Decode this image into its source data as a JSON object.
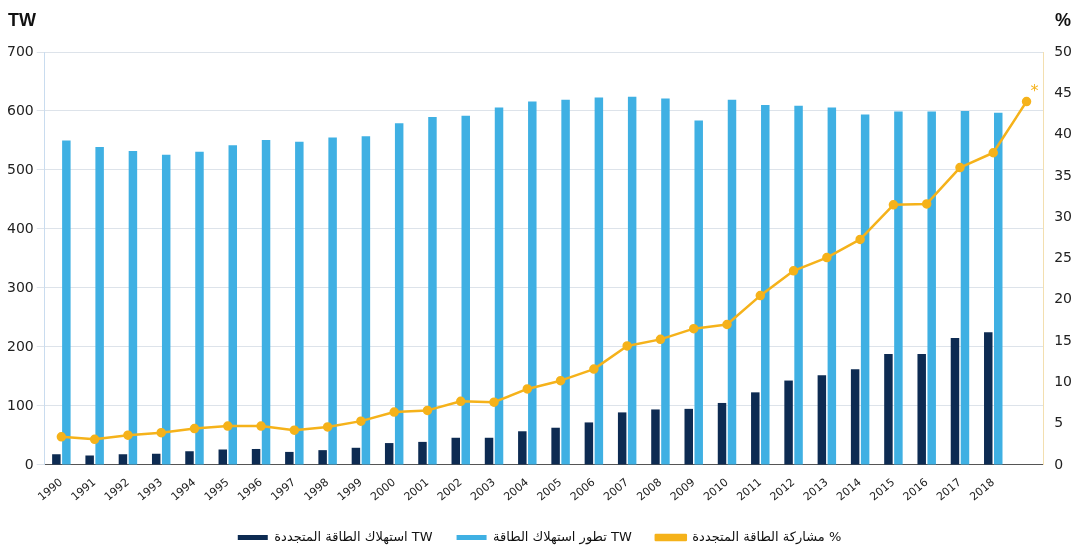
{
  "chart_data": {
    "type": "bar",
    "ylabel": "TW",
    "y2label": "%",
    "categories": [
      "1990",
      "1991",
      "1992",
      "1993",
      "1994",
      "1995",
      "1996",
      "1997",
      "1998",
      "1999",
      "2000",
      "2001",
      "2002",
      "2003",
      "2004",
      "2005",
      "2006",
      "2007",
      "2008",
      "2009",
      "2010",
      "2011",
      "2012",
      "2013",
      "2014",
      "2015",
      "2016",
      "2017",
      "2018",
      null
    ],
    "series": [
      {
        "name": "استهلاك الطاقة المتجددة TW",
        "color": "#0d2b52",
        "values": [
          18,
          16,
          18,
          19,
          23,
          26,
          27,
          22,
          25,
          29,
          37,
          39,
          46,
          46,
          57,
          63,
          72,
          89,
          94,
          95,
          105,
          123,
          143,
          152,
          162,
          188,
          188,
          215,
          225,
          null
        ]
      },
      {
        "name": "تطور استهلاك الطاقة TW",
        "color": "#3fb0e3",
        "values": [
          550,
          539,
          532,
          526,
          531,
          542,
          551,
          548,
          555,
          557,
          579,
          590,
          592,
          606,
          616,
          619,
          623,
          624,
          621,
          584,
          619,
          610,
          609,
          606,
          594,
          599,
          599,
          600,
          597,
          null
        ]
      },
      {
        "name": "مشاركة الطاقة المتجددة %",
        "type": "line",
        "axis": "y2",
        "color": "#f5b21a",
        "marker": "circle",
        "values": [
          3.4,
          3.1,
          3.6,
          3.9,
          4.4,
          4.7,
          4.7,
          4.2,
          4.6,
          5.3,
          6.4,
          6.6,
          7.7,
          7.6,
          9.2,
          10.2,
          11.6,
          14.4,
          15.2,
          16.5,
          17.0,
          20.5,
          23.5,
          25.1,
          27.3,
          31.5,
          31.6,
          36.0,
          37.8,
          44.0
        ]
      }
    ],
    "ylim": [
      0,
      700
    ],
    "yticks": [
      0,
      100,
      200,
      300,
      400,
      500,
      600,
      700
    ],
    "y2lim": [
      0,
      50
    ],
    "y2ticks": [
      0,
      5,
      10,
      15,
      20,
      25,
      30,
      35,
      40,
      45,
      50
    ],
    "annotations": [
      "*"
    ],
    "grid": "y",
    "legend": "bottom"
  }
}
